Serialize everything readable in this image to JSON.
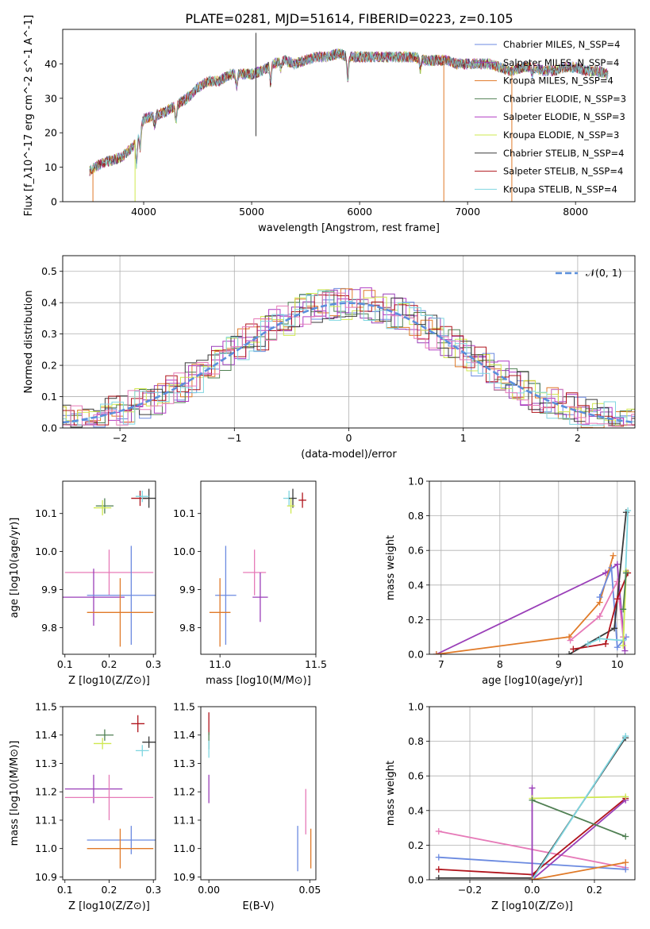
{
  "figure_title": "PLATE=0281, MJD=51614, FIBERID=0223, z=0.105",
  "colors": {
    "chabrier_miles": "#6b8ae0",
    "salpeter_miles": "#9a3fb8",
    "kroupa_miles": "#e07a28",
    "chabrier_elodie": "#4f7f52",
    "salpeter_elodie": "#b13cc3",
    "kroupa_elodie": "#cfe84f",
    "chabrier_stelib": "#3a3a3a",
    "salpeter_stelib": "#b0141c",
    "kroupa_stelib": "#7fd6e0",
    "pink": "#e67ab8",
    "gaussian": "#5b8fdc"
  },
  "chart_data": [
    {
      "id": "spectrum",
      "type": "line",
      "xlabel": "wavelength [Angstrom, rest frame]",
      "ylabel": "Flux [f_λ10^-17 erg cm^-2 s^-1 A^-1]",
      "xlim": [
        3250,
        8550
      ],
      "ylim": [
        0,
        50
      ],
      "xticks": [
        4000,
        5000,
        6000,
        7000,
        8000
      ],
      "yticks": [
        0,
        10,
        20,
        30,
        40
      ],
      "legend_position": "right",
      "continuum": [
        [
          3500,
          9
        ],
        [
          3600,
          11
        ],
        [
          3700,
          12
        ],
        [
          3800,
          13
        ],
        [
          3900,
          16
        ],
        [
          4000,
          24
        ],
        [
          4100,
          25
        ],
        [
          4200,
          26
        ],
        [
          4300,
          28
        ],
        [
          4400,
          30
        ],
        [
          4500,
          33
        ],
        [
          4600,
          35
        ],
        [
          4700,
          35
        ],
        [
          4800,
          37
        ],
        [
          4900,
          37
        ],
        [
          5000,
          37
        ],
        [
          5100,
          38
        ],
        [
          5200,
          40
        ],
        [
          5300,
          41
        ],
        [
          5400,
          40
        ],
        [
          5500,
          41
        ],
        [
          5600,
          42
        ],
        [
          5700,
          42
        ],
        [
          5800,
          43
        ],
        [
          5900,
          42
        ],
        [
          6000,
          42
        ],
        [
          6100,
          42
        ],
        [
          6200,
          42
        ],
        [
          6300,
          42
        ],
        [
          6400,
          42
        ],
        [
          6500,
          42
        ],
        [
          6600,
          41
        ],
        [
          6700,
          41
        ],
        [
          6800,
          41
        ],
        [
          6900,
          40
        ],
        [
          7000,
          40
        ],
        [
          7100,
          40
        ],
        [
          7200,
          40
        ],
        [
          7300,
          39
        ],
        [
          7400,
          38
        ],
        [
          7500,
          39
        ],
        [
          7600,
          39
        ],
        [
          7700,
          38
        ],
        [
          7800,
          38
        ],
        [
          7900,
          39
        ],
        [
          8000,
          39
        ],
        [
          8100,
          38
        ],
        [
          8200,
          38
        ],
        [
          8300,
          37
        ]
      ],
      "series": [
        {
          "name": "Chabrier MILES, N_SSP=4",
          "color_key": "chabrier_miles"
        },
        {
          "name": "Salpeter MILES, N_SSP=4",
          "color_key": "salpeter_miles"
        },
        {
          "name": "Kroupa MILES, N_SSP=4",
          "color_key": "kroupa_miles"
        },
        {
          "name": "Chabrier ELODIE, N_SSP=3",
          "color_key": "chabrier_elodie"
        },
        {
          "name": "Salpeter ELODIE, N_SSP=3",
          "color_key": "salpeter_elodie"
        },
        {
          "name": "Kroupa ELODIE, N_SSP=3",
          "color_key": "kroupa_elodie"
        },
        {
          "name": "Chabrier STELIB, N_SSP=4",
          "color_key": "chabrier_stelib"
        },
        {
          "name": "Salpeter STELIB, N_SSP=4",
          "color_key": "salpeter_stelib"
        },
        {
          "name": "Kroupa STELIB, N_SSP=4",
          "color_key": "kroupa_stelib"
        }
      ],
      "spikes": [
        {
          "x": 3530,
          "y0": 0,
          "y1": 9,
          "color_key": "kroupa_miles"
        },
        {
          "x": 3920,
          "y0": 0,
          "y1": 18,
          "color_key": "kroupa_elodie"
        },
        {
          "x": 5040,
          "y0": 19,
          "y1": 49,
          "color_key": "chabrier_stelib"
        },
        {
          "x": 6780,
          "y0": 0,
          "y1": 41,
          "color_key": "kroupa_miles"
        },
        {
          "x": 7410,
          "y0": 0,
          "y1": 38,
          "color_key": "kroupa_miles"
        }
      ]
    },
    {
      "id": "residuals",
      "type": "histogram",
      "xlabel": "(data-model)/error",
      "ylabel": "Normed distribution",
      "xlim": [
        -2.5,
        2.5
      ],
      "ylim": [
        0,
        0.55
      ],
      "xticks": [
        -2,
        -1,
        0,
        1,
        2
      ],
      "xtick_labels": [
        "−2",
        "−1",
        "0",
        "1",
        "2"
      ],
      "yticks": [
        0.0,
        0.1,
        0.2,
        0.3,
        0.4,
        0.5
      ],
      "grid": true,
      "legend_position": "top-right",
      "gaussian_label": "𝒩(0, 1)",
      "bin_width": 0.1,
      "series_colors": [
        "chabrier_miles",
        "salpeter_miles",
        "kroupa_miles",
        "chabrier_elodie",
        "salpeter_elodie",
        "kroupa_elodie",
        "chabrier_stelib",
        "salpeter_stelib",
        "kroupa_stelib",
        "pink"
      ]
    },
    {
      "id": "age_vs_Z",
      "type": "errorbar",
      "xlabel": "Z [log10(Z/Z⊙)]",
      "ylabel": "age [log10(age/yr)]",
      "xlim": [
        0.095,
        0.305
      ],
      "ylim": [
        9.73,
        10.185
      ],
      "xticks": [
        0.1,
        0.2,
        0.3
      ],
      "yticks": [
        9.8,
        9.9,
        10.0,
        10.1
      ],
      "points": [
        {
          "x": 0.19,
          "y": 10.12,
          "xerr": 0.02,
          "yerr": 0.02,
          "color_key": "chabrier_elodie"
        },
        {
          "x": 0.185,
          "y": 10.115,
          "xerr": 0.02,
          "yerr": 0.02,
          "color_key": "kroupa_elodie"
        },
        {
          "x": 0.27,
          "y": 10.14,
          "xerr": 0.02,
          "yerr": 0.02,
          "color_key": "salpeter_stelib"
        },
        {
          "x": 0.29,
          "y": 10.14,
          "xerr": 0.015,
          "yerr": 0.025,
          "color_key": "chabrier_stelib"
        },
        {
          "x": 0.275,
          "y": 10.145,
          "xerr": 0.015,
          "yerr": 0.015,
          "color_key": "kroupa_stelib"
        },
        {
          "x": 0.2,
          "y": 9.945,
          "xerr": 0.1,
          "yerr": 0.06,
          "color_key": "pink"
        },
        {
          "x": 0.165,
          "y": 9.88,
          "xerr": 0.07,
          "yerr": 0.075,
          "color_key": "salpeter_miles"
        },
        {
          "x": 0.25,
          "y": 9.885,
          "xerr": 0.1,
          "yerr": 0.13,
          "color_key": "chabrier_miles"
        },
        {
          "x": 0.225,
          "y": 9.84,
          "xerr": 0.075,
          "yerr": 0.09,
          "color_key": "kroupa_miles"
        }
      ]
    },
    {
      "id": "age_vs_mass",
      "type": "errorbar",
      "xlabel": "mass [log10(M/M⊙)]",
      "ylabel": "",
      "xlim": [
        10.9,
        11.5
      ],
      "ylim": [
        9.73,
        10.185
      ],
      "xticks": [
        11.0,
        11.5
      ],
      "yticks": [
        9.8,
        9.9,
        10.0,
        10.1
      ],
      "points": [
        {
          "x": 11.36,
          "y": 10.14,
          "xerr": 0.03,
          "yerr": 0.02,
          "color_key": "kroupa_stelib"
        },
        {
          "x": 11.38,
          "y": 10.14,
          "xerr": 0.02,
          "yerr": 0.025,
          "color_key": "chabrier_stelib"
        },
        {
          "x": 11.43,
          "y": 10.135,
          "xerr": 0.02,
          "yerr": 0.02,
          "color_key": "salpeter_stelib"
        },
        {
          "x": 11.37,
          "y": 10.12,
          "xerr": 0.02,
          "yerr": 0.02,
          "color_key": "kroupa_elodie"
        },
        {
          "x": 11.18,
          "y": 9.945,
          "xerr": 0.06,
          "yerr": 0.06,
          "color_key": "pink"
        },
        {
          "x": 11.21,
          "y": 9.88,
          "xerr": 0.04,
          "yerr": 0.065,
          "color_key": "salpeter_miles"
        },
        {
          "x": 11.03,
          "y": 9.885,
          "xerr": 0.055,
          "yerr": 0.13,
          "color_key": "chabrier_miles"
        },
        {
          "x": 11.0,
          "y": 9.84,
          "xerr": 0.055,
          "yerr": 0.09,
          "color_key": "kroupa_miles"
        }
      ]
    },
    {
      "id": "mass_weight_vs_age",
      "type": "line",
      "xlabel": "age [log10(age/yr)]",
      "ylabel": "mass weight",
      "xlim": [
        6.8,
        10.3
      ],
      "ylim": [
        0,
        1.0
      ],
      "xticks": [
        7,
        8,
        9,
        10
      ],
      "yticks": [
        0.0,
        0.2,
        0.4,
        0.6,
        0.8,
        1.0
      ],
      "grid": true,
      "series": [
        {
          "color_key": "salpeter_miles",
          "points": [
            [
              6.92,
              0.0
            ],
            [
              9.8,
              0.47
            ],
            [
              10.0,
              0.52
            ],
            [
              10.13,
              0.02
            ]
          ]
        },
        {
          "color_key": "kroupa_miles",
          "points": [
            [
              6.92,
              0.0
            ],
            [
              9.18,
              0.1
            ],
            [
              9.7,
              0.3
            ],
            [
              9.93,
              0.57
            ]
          ]
        },
        {
          "color_key": "chabrier_miles",
          "points": [
            [
              9.7,
              0.33
            ],
            [
              9.9,
              0.5
            ],
            [
              10.0,
              0.04
            ],
            [
              10.15,
              0.1
            ]
          ]
        },
        {
          "color_key": "pink",
          "points": [
            [
              9.2,
              0.08
            ],
            [
              9.7,
              0.22
            ],
            [
              10.0,
              0.42
            ],
            [
              10.1,
              0.1
            ]
          ]
        },
        {
          "color_key": "chabrier_stelib",
          "points": [
            [
              9.18,
              0.0
            ],
            [
              9.95,
              0.15
            ],
            [
              10.15,
              0.82
            ]
          ]
        },
        {
          "color_key": "salpeter_stelib",
          "points": [
            [
              9.25,
              0.03
            ],
            [
              9.8,
              0.06
            ],
            [
              10.0,
              0.32
            ],
            [
              10.18,
              0.47
            ]
          ]
        },
        {
          "color_key": "kroupa_stelib",
          "points": [
            [
              9.5,
              0.06
            ],
            [
              9.7,
              0.09
            ],
            [
              10.1,
              0.08
            ],
            [
              10.18,
              0.83
            ]
          ]
        },
        {
          "color_key": "kroupa_elodie",
          "points": [
            [
              10.1,
              0.05
            ],
            [
              10.15,
              0.48
            ]
          ]
        },
        {
          "color_key": "chabrier_elodie",
          "points": [
            [
              10.1,
              0.26
            ],
            [
              10.15,
              0.47
            ]
          ]
        }
      ]
    },
    {
      "id": "mass_vs_Z",
      "type": "errorbar",
      "xlabel": "Z [log10(Z/Z⊙)]",
      "ylabel": "mass [log10(M/M⊙)]",
      "xlim": [
        0.095,
        0.305
      ],
      "ylim": [
        10.89,
        11.5
      ],
      "xticks": [
        0.1,
        0.2,
        0.3
      ],
      "yticks": [
        10.9,
        11.0,
        11.1,
        11.2,
        11.3,
        11.4,
        11.5
      ],
      "points": [
        {
          "x": 0.19,
          "y": 11.4,
          "xerr": 0.02,
          "yerr": 0.02,
          "color_key": "chabrier_elodie"
        },
        {
          "x": 0.185,
          "y": 11.37,
          "xerr": 0.02,
          "yerr": 0.02,
          "color_key": "kroupa_elodie"
        },
        {
          "x": 0.265,
          "y": 11.44,
          "xerr": 0.015,
          "yerr": 0.03,
          "color_key": "salpeter_stelib"
        },
        {
          "x": 0.29,
          "y": 11.375,
          "xerr": 0.015,
          "yerr": 0.02,
          "color_key": "chabrier_stelib"
        },
        {
          "x": 0.275,
          "y": 11.345,
          "xerr": 0.015,
          "yerr": 0.02,
          "color_key": "kroupa_stelib"
        },
        {
          "x": 0.165,
          "y": 11.21,
          "xerr": 0.065,
          "yerr": 0.05,
          "color_key": "salpeter_miles"
        },
        {
          "x": 0.2,
          "y": 11.18,
          "xerr": 0.1,
          "yerr": 0.08,
          "color_key": "pink"
        },
        {
          "x": 0.25,
          "y": 11.03,
          "xerr": 0.1,
          "yerr": 0.05,
          "color_key": "chabrier_miles"
        },
        {
          "x": 0.225,
          "y": 11.0,
          "xerr": 0.075,
          "yerr": 0.07,
          "color_key": "kroupa_miles"
        }
      ]
    },
    {
      "id": "mass_vs_ebv",
      "type": "errorbar",
      "xlabel": "E(B-V)",
      "ylabel": "",
      "xlim": [
        -0.004,
        0.053
      ],
      "ylim": [
        10.89,
        11.5
      ],
      "xticks": [
        0.0,
        0.05
      ],
      "xtick_labels": [
        "0.00",
        "0.05"
      ],
      "yticks": [
        10.9,
        11.0,
        11.1,
        11.2,
        11.3,
        11.4,
        11.5
      ],
      "points": [
        {
          "x": 0.0,
          "y": 11.44,
          "xerr": 0,
          "yerr": 0.04,
          "color_key": "salpeter_stelib"
        },
        {
          "x": 0.0,
          "y": 11.38,
          "xerr": 0,
          "yerr": 0.03,
          "color_key": "chabrier_elodie"
        },
        {
          "x": 0.0,
          "y": 11.35,
          "xerr": 0,
          "yerr": 0.03,
          "color_key": "kroupa_stelib"
        },
        {
          "x": 0.0,
          "y": 11.21,
          "xerr": 0,
          "yerr": 0.05,
          "color_key": "salpeter_miles"
        },
        {
          "x": 0.048,
          "y": 11.13,
          "xerr": 0,
          "yerr": 0.08,
          "color_key": "pink"
        },
        {
          "x": 0.044,
          "y": 11.0,
          "xerr": 0,
          "yerr": 0.08,
          "color_key": "chabrier_miles"
        },
        {
          "x": 0.0505,
          "y": 11.0,
          "xerr": 0,
          "yerr": 0.07,
          "color_key": "kroupa_miles"
        }
      ]
    },
    {
      "id": "mass_weight_vs_Z",
      "type": "line",
      "xlabel": "Z [log10(Z/Z⊙)]",
      "ylabel": "mass weight",
      "xlim": [
        -0.33,
        0.33
      ],
      "ylim": [
        0,
        1.0
      ],
      "xticks": [
        -0.2,
        0.0,
        0.2
      ],
      "xtick_labels": [
        "−0.2",
        "0.0",
        "0.2"
      ],
      "yticks": [
        0.0,
        0.2,
        0.4,
        0.6,
        0.8,
        1.0
      ],
      "grid": true,
      "series": [
        {
          "color_key": "pink",
          "points": [
            [
              -0.3,
              0.28
            ],
            [
              0.3,
              0.07
            ]
          ]
        },
        {
          "color_key": "chabrier_miles",
          "points": [
            [
              -0.3,
              0.13
            ],
            [
              0.3,
              0.06
            ]
          ]
        },
        {
          "color_key": "chabrier_stelib",
          "points": [
            [
              -0.3,
              0.01
            ],
            [
              0.0,
              0.01
            ],
            [
              0.3,
              0.82
            ]
          ]
        },
        {
          "color_key": "salpeter_stelib",
          "points": [
            [
              -0.3,
              0.06
            ],
            [
              0.0,
              0.03
            ],
            [
              0.3,
              0.47
            ]
          ]
        },
        {
          "color_key": "salpeter_miles",
          "points": [
            [
              0.0,
              0.53
            ],
            [
              0.0,
              0.0
            ],
            [
              0.3,
              0.46
            ]
          ]
        },
        {
          "color_key": "kroupa_elodie",
          "points": [
            [
              0.0,
              0.47
            ],
            [
              0.3,
              0.48
            ]
          ]
        },
        {
          "color_key": "chabrier_elodie",
          "points": [
            [
              0.0,
              0.46
            ],
            [
              0.3,
              0.25
            ]
          ]
        },
        {
          "color_key": "kroupa_stelib",
          "points": [
            [
              0.0,
              0.0
            ],
            [
              0.3,
              0.83
            ]
          ]
        },
        {
          "color_key": "kroupa_miles",
          "points": [
            [
              0.0,
              0.0
            ],
            [
              0.3,
              0.1
            ]
          ]
        }
      ]
    }
  ]
}
